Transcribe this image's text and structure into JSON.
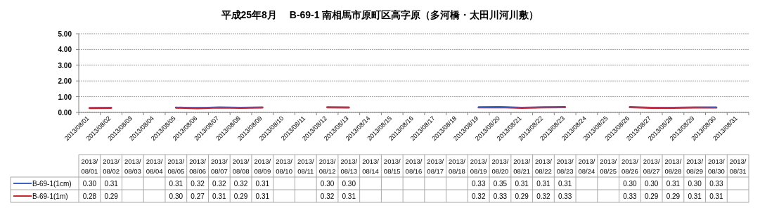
{
  "chart_data": {
    "type": "line",
    "title": "平成25年8月　 B-69-1 南相馬市原町区高字原（多河橋・太田川河川敷）",
    "categories": [
      "2013/08/01",
      "2013/08/02",
      "2013/08/03",
      "2013/08/04",
      "2013/08/05",
      "2013/08/06",
      "2013/08/07",
      "2013/08/08",
      "2013/08/09",
      "2013/08/10",
      "2013/08/11",
      "2013/08/12",
      "2013/08/13",
      "2013/08/14",
      "2013/08/15",
      "2013/08/16",
      "2013/08/17",
      "2013/08/18",
      "2013/08/19",
      "2013/08/20",
      "2013/08/21",
      "2013/08/22",
      "2013/08/23",
      "2013/08/24",
      "2013/08/25",
      "2013/08/26",
      "2013/08/27",
      "2013/08/28",
      "2013/08/29",
      "2013/08/30",
      "2013/08/31"
    ],
    "series": [
      {
        "name": "B-69-1(1cm)",
        "color": "#3f64c8",
        "values": [
          0.3,
          0.31,
          null,
          null,
          0.31,
          0.32,
          0.32,
          0.32,
          0.31,
          null,
          null,
          0.3,
          0.3,
          null,
          null,
          null,
          null,
          null,
          0.33,
          0.35,
          0.31,
          0.31,
          0.31,
          null,
          null,
          0.3,
          0.3,
          0.31,
          0.3,
          0.33,
          null
        ],
        "value_labels": [
          "0.30",
          "0.31",
          null,
          null,
          "0.31",
          "0.32",
          "0.32",
          "0.32",
          "0.31",
          null,
          null,
          "0.30",
          "0.30",
          null,
          null,
          null,
          null,
          null,
          "0.33",
          "0.35",
          "0.31",
          "0.31",
          "0.31",
          null,
          null,
          "0.30",
          "0.30",
          "0.31",
          "0.30",
          "0.33",
          null
        ]
      },
      {
        "name": "B-69-1(1m)",
        "color": "#c8282d",
        "values": [
          0.28,
          0.29,
          null,
          null,
          0.3,
          0.27,
          0.31,
          0.29,
          0.31,
          null,
          null,
          0.32,
          0.31,
          null,
          null,
          null,
          null,
          null,
          0.32,
          0.33,
          0.29,
          0.32,
          0.33,
          null,
          null,
          0.33,
          0.29,
          0.29,
          0.31,
          0.31,
          null
        ],
        "value_labels": [
          "0.28",
          "0.29",
          null,
          null,
          "0.30",
          "0.27",
          "0.31",
          "0.29",
          "0.31",
          null,
          null,
          "0.32",
          "0.31",
          null,
          null,
          null,
          null,
          null,
          "0.32",
          "0.33",
          "0.29",
          "0.32",
          "0.33",
          null,
          null,
          "0.33",
          "0.29",
          "0.29",
          "0.31",
          "0.31",
          null
        ]
      }
    ],
    "ylim": [
      0,
      5
    ],
    "yticks": [
      {
        "value": 0,
        "label": "0.00"
      },
      {
        "value": 1,
        "label": "1.00"
      },
      {
        "value": 2,
        "label": "2.00"
      },
      {
        "value": 3,
        "label": "3.00"
      },
      {
        "value": 4,
        "label": "4.00"
      },
      {
        "value": 5,
        "label": "5.00"
      }
    ],
    "grid": "y",
    "legend": "bottom",
    "marker": "none",
    "line_style": "solid"
  }
}
